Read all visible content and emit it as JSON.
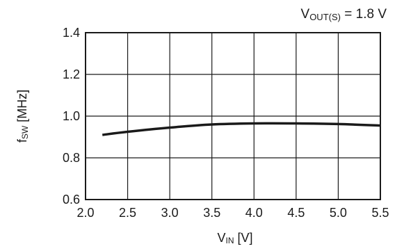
{
  "chart_data": {
    "type": "line",
    "condition": {
      "main": "V",
      "sub": "OUT(S)",
      "rest": " = 1.8 V"
    },
    "xlabel": {
      "main": "V",
      "sub": "IN",
      "rest": " [V]"
    },
    "ylabel": {
      "main": "f",
      "sub": "SW",
      "rest": " [MHz]"
    },
    "xlim": [
      2.0,
      5.5
    ],
    "ylim": [
      0.6,
      1.4
    ],
    "x_ticks": [
      "2.0",
      "2.5",
      "3.0",
      "3.5",
      "4.0",
      "4.5",
      "5.0",
      "5.5"
    ],
    "y_ticks": [
      "0.6",
      "0.8",
      "1.0",
      "1.2",
      "1.4"
    ],
    "grid": true,
    "series": [
      {
        "x": [
          2.2,
          2.5,
          3.0,
          3.5,
          4.0,
          4.5,
          5.0,
          5.5
        ],
        "y": [
          0.91,
          0.925,
          0.945,
          0.96,
          0.965,
          0.965,
          0.962,
          0.955
        ]
      }
    ],
    "line_color": "#1a1a1a",
    "grid_color": "#1a1a1a"
  }
}
